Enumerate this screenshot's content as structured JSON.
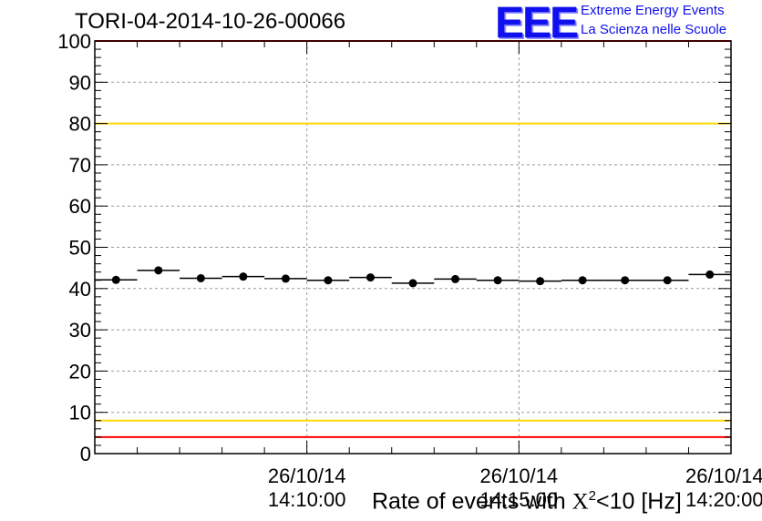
{
  "chart_data": {
    "type": "scatter",
    "title": "TORI-04-2014-10-26-00066",
    "xlabel_parts": {
      "prefix": "Rate of events with ",
      "chi": "X",
      "sup": "2",
      "suffix": "<10 [Hz]"
    },
    "ylim": [
      0,
      100
    ],
    "yticks": [
      0,
      10,
      20,
      30,
      40,
      50,
      60,
      70,
      80,
      90,
      100
    ],
    "xticks": [
      {
        "date": "26/10/14",
        "time": "14:10:00",
        "minute": 10
      },
      {
        "date": "26/10/14",
        "time": "14:15:00",
        "minute": 15
      },
      {
        "date": "26/10/14",
        "time": "14:20:00",
        "minute": 20
      }
    ],
    "xlim_minutes": [
      5,
      20
    ],
    "bin_width_minutes": 1,
    "x_minutes": [
      5.5,
      6.5,
      7.5,
      8.5,
      9.5,
      10.5,
      11.5,
      12.5,
      13.5,
      14.5,
      15.5,
      16.5,
      17.5,
      18.5,
      19.5
    ],
    "values": [
      42.1,
      44.4,
      42.5,
      42.9,
      42.4,
      42.0,
      42.7,
      41.3,
      42.3,
      42.0,
      41.8,
      42.0,
      42.0,
      42.0,
      43.4
    ],
    "reference_lines": [
      {
        "value": 100,
        "color": "#ff0000"
      },
      {
        "value": 80,
        "color": "#ffd700"
      },
      {
        "value": 8,
        "color": "#ffd700"
      },
      {
        "value": 4,
        "color": "#ff0000"
      }
    ],
    "grid": true
  },
  "logo": {
    "mark": "EEE",
    "line1": "Extreme Energy Events",
    "line2": "La Scienza nelle Scuole",
    "color": "#1010ee"
  }
}
